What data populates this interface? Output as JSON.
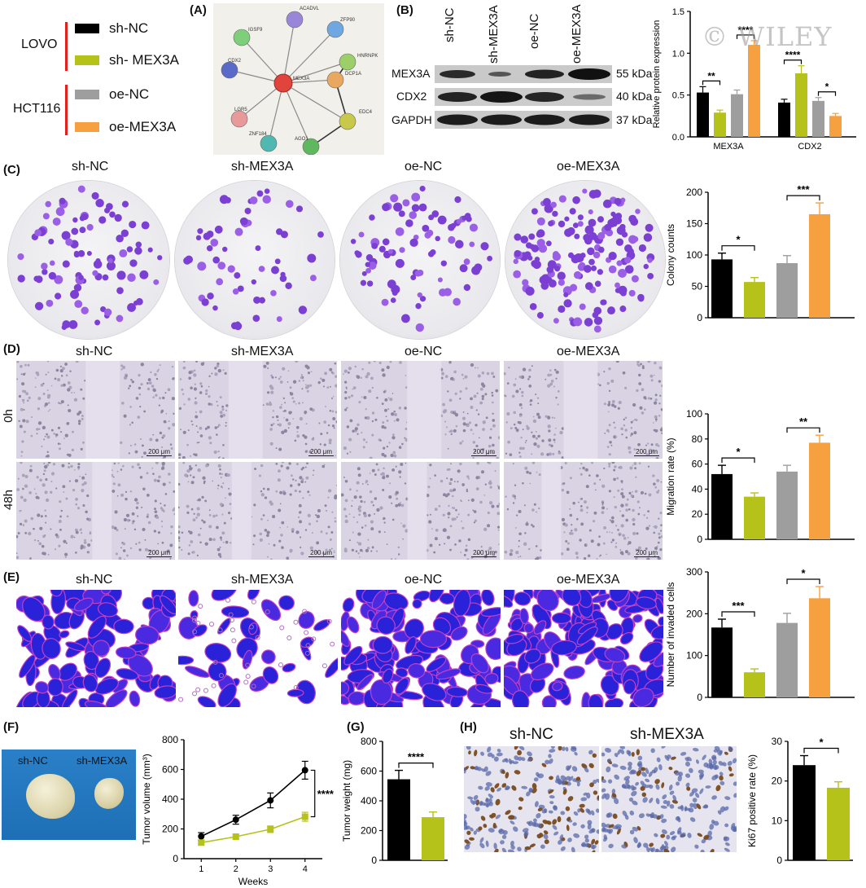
{
  "legend": {
    "groups": [
      {
        "cell_line": "LOVO",
        "items": [
          {
            "label": "sh-NC",
            "color": "#000000"
          },
          {
            "label": "sh- MEX3A",
            "color": "#b5c21a"
          }
        ]
      },
      {
        "cell_line": "HCT116",
        "items": [
          {
            "label": "oe-NC",
            "color": "#9e9e9e"
          },
          {
            "label": "oe-MEX3A",
            "color": "#f7a040"
          }
        ]
      }
    ]
  },
  "colors": {
    "sh_nc": "#000000",
    "sh_mex3a": "#b5c21a",
    "oe_nc": "#9e9e9e",
    "oe_mex3a": "#f7a040",
    "red_bracket": "#e0211e"
  },
  "panels": {
    "A": "(A)",
    "B": "(B)",
    "C": "(C)",
    "D": "(D)",
    "E": "(E)",
    "F": "(F)",
    "G": "(G)",
    "H": "(H)"
  },
  "network": {
    "center": "MEX3A",
    "nodes": [
      {
        "label": "IGSF9",
        "color": "#7fcf7a"
      },
      {
        "label": "ACADVL",
        "color": "#9a86d8"
      },
      {
        "label": "ZFP90",
        "color": "#6fa8e0"
      },
      {
        "label": "HNRNPK",
        "color": "#9ccf6a"
      },
      {
        "label": "DCP1A",
        "color": "#e8a860"
      },
      {
        "label": "EDC4",
        "color": "#c8c84a"
      },
      {
        "label": "AGO1",
        "color": "#5fb85f"
      },
      {
        "label": "ZNF184",
        "color": "#4fb8b0"
      },
      {
        "label": "LGR5",
        "color": "#e89a9a"
      },
      {
        "label": "CDX2",
        "color": "#5a6ac8"
      }
    ]
  },
  "western": {
    "lanes": [
      "sh-NC",
      "sh-MEX3A",
      "oe-NC",
      "oe-MEX3A"
    ],
    "bands": [
      {
        "protein": "MEX3A",
        "size": "55 kDa"
      },
      {
        "protein": "CDX2",
        "size": "40 kDa"
      },
      {
        "protein": "GAPDH",
        "size": "37 kDa"
      }
    ],
    "watermark": "© WILEY"
  },
  "conditions": [
    "sh-NC",
    "sh-MEX3A",
    "oe-NC",
    "oe-MEX3A"
  ],
  "timepoints": [
    "0h",
    "48h"
  ],
  "scalebar": "200 μm",
  "tumor_photo": {
    "labels": [
      "sh-NC",
      "sh-MEX3A"
    ]
  },
  "ihc": {
    "labels": [
      "sh-NC",
      "sh-MEX3A"
    ]
  },
  "chart_data": [
    {
      "id": "B",
      "type": "bar",
      "ylabel": "Relative protein expression",
      "ylim": [
        0,
        1.5
      ],
      "yticks": [
        "0.0",
        "0.5",
        "1.0",
        "1.5"
      ],
      "categories": [
        "MEX3A",
        "CDX2"
      ],
      "series": [
        {
          "values": [
            0.53,
            0.41
          ],
          "errors": [
            0.07,
            0.04
          ]
        },
        {
          "values": [
            0.29,
            0.76
          ],
          "errors": [
            0.03,
            0.09
          ]
        },
        {
          "values": [
            0.51,
            0.43
          ],
          "errors": [
            0.05,
            0.04
          ]
        },
        {
          "values": [
            1.1,
            0.25
          ],
          "errors": [
            0.05,
            0.03
          ]
        }
      ],
      "significance": [
        {
          "from": 0,
          "to": 1,
          "category": 0,
          "label": "**"
        },
        {
          "from": 2,
          "to": 3,
          "category": 0,
          "label": "****"
        },
        {
          "from": 0,
          "to": 1,
          "category": 1,
          "label": "****"
        },
        {
          "from": 2,
          "to": 3,
          "category": 1,
          "label": "*"
        }
      ]
    },
    {
      "id": "C",
      "type": "bar",
      "ylabel": "Colony counts",
      "ylim": [
        0,
        200
      ],
      "yticks": [
        "0",
        "50",
        "100",
        "150",
        "200"
      ],
      "categories": [
        "sh-NC",
        "sh-MEX3A",
        "oe-NC",
        "oe-MEX3A"
      ],
      "values": [
        93,
        57,
        87,
        165
      ],
      "errors": [
        10,
        7,
        12,
        18
      ],
      "significance": [
        {
          "from": 0,
          "to": 1,
          "label": "*"
        },
        {
          "from": 2,
          "to": 3,
          "label": "***"
        }
      ]
    },
    {
      "id": "D",
      "type": "bar",
      "ylabel": "Migration rate (%)",
      "ylim": [
        0,
        100
      ],
      "yticks": [
        "0",
        "20",
        "40",
        "60",
        "80",
        "100"
      ],
      "categories": [
        "sh-NC",
        "sh-MEX3A",
        "oe-NC",
        "oe-MEX3A"
      ],
      "values": [
        52,
        34,
        54,
        77
      ],
      "errors": [
        7,
        3,
        5,
        6
      ],
      "significance": [
        {
          "from": 0,
          "to": 1,
          "label": "*"
        },
        {
          "from": 2,
          "to": 3,
          "label": "**"
        }
      ]
    },
    {
      "id": "E",
      "type": "bar",
      "ylabel": "Number of invaded cells",
      "ylim": [
        0,
        300
      ],
      "yticks": [
        "0",
        "100",
        "200",
        "300"
      ],
      "categories": [
        "sh-NC",
        "sh-MEX3A",
        "oe-NC",
        "oe-MEX3A"
      ],
      "values": [
        167,
        60,
        178,
        237
      ],
      "errors": [
        20,
        8,
        23,
        28
      ],
      "significance": [
        {
          "from": 0,
          "to": 1,
          "label": "***"
        },
        {
          "from": 2,
          "to": 3,
          "label": "*"
        }
      ]
    },
    {
      "id": "F",
      "type": "line",
      "ylabel": "Tumor volume (mm³)",
      "xlabel": "Weeks",
      "ylim": [
        0,
        800
      ],
      "xlim": [
        0.5,
        4.5
      ],
      "yticks": [
        "0",
        "200",
        "400",
        "600",
        "800"
      ],
      "xticks": [
        "1",
        "2",
        "3",
        "4"
      ],
      "x": [
        1,
        2,
        3,
        4
      ],
      "series": [
        {
          "values": [
            150,
            262,
            392,
            595
          ],
          "errors": [
            25,
            30,
            50,
            60
          ]
        },
        {
          "values": [
            108,
            148,
            198,
            282
          ],
          "errors": [
            15,
            18,
            22,
            30
          ]
        }
      ],
      "significance": [
        {
          "label": "****"
        }
      ]
    },
    {
      "id": "G",
      "type": "bar",
      "ylabel": "Tumor weight (mg)",
      "ylim": [
        0,
        800
      ],
      "yticks": [
        "0",
        "200",
        "400",
        "600",
        "800"
      ],
      "categories": [
        "sh-NC",
        "sh-MEX3A"
      ],
      "values": [
        545,
        290
      ],
      "errors": [
        60,
        35
      ],
      "significance": [
        {
          "from": 0,
          "to": 1,
          "label": "****"
        }
      ]
    },
    {
      "id": "H",
      "type": "bar",
      "ylabel": "Ki67 positive rate (%)",
      "ylim": [
        0,
        30
      ],
      "yticks": [
        "0",
        "10",
        "20",
        "30"
      ],
      "categories": [
        "sh-NC",
        "sh-MEX3A"
      ],
      "values": [
        24,
        18.3
      ],
      "errors": [
        2.4,
        1.5
      ],
      "significance": [
        {
          "from": 0,
          "to": 1,
          "label": "*"
        }
      ]
    }
  ]
}
